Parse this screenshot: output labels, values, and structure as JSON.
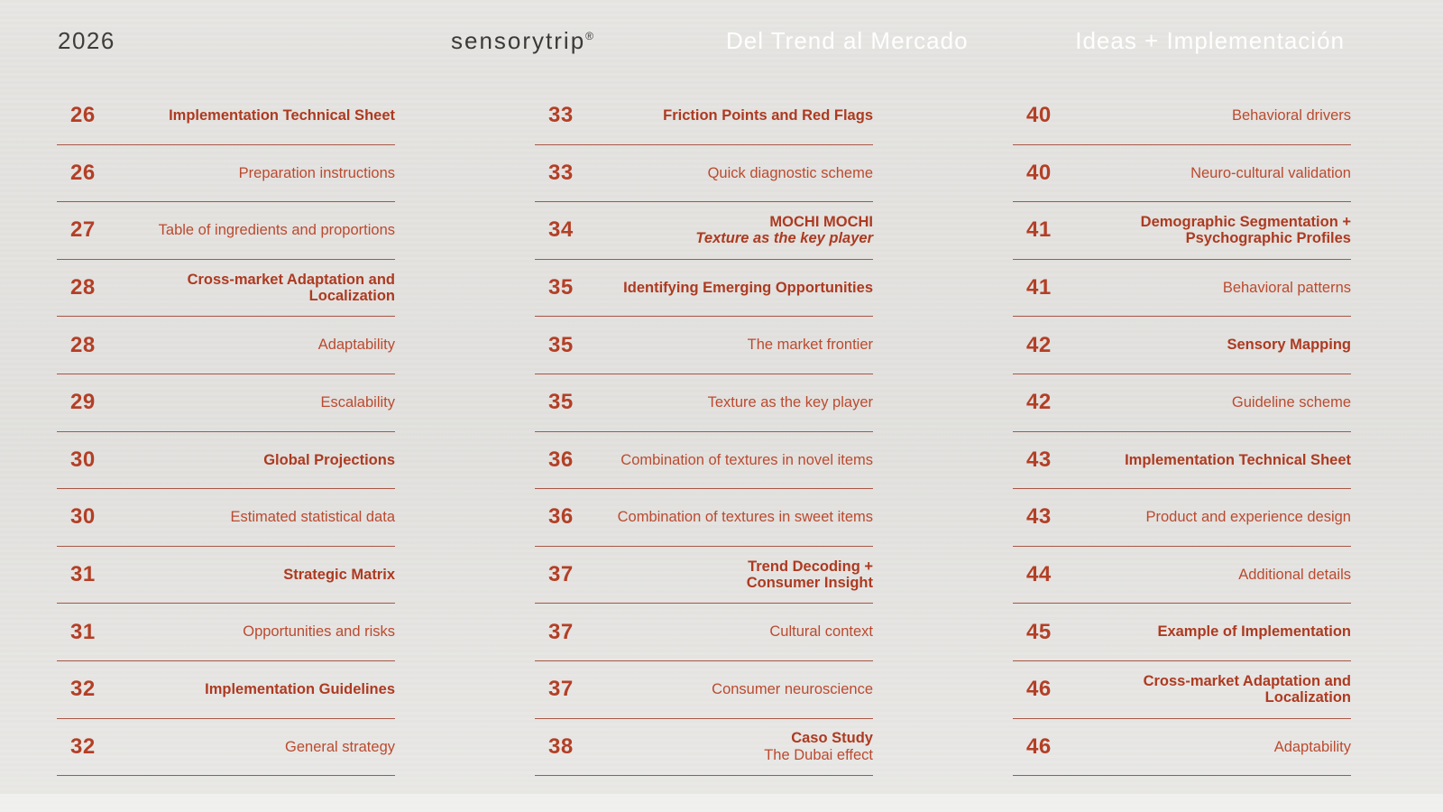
{
  "header": {
    "year": "2026",
    "brand": "sensorytrip",
    "brand_mark": "®",
    "sections": [
      "Del Trend al Mercado",
      "Ideas + Implementación"
    ]
  },
  "colors": {
    "background": "#e4e3e0",
    "accent_number": "#b33f26",
    "accent_title_bold": "#ad3a21",
    "accent_title_regular": "#bb4a2f",
    "rule": "#9e3e2a",
    "header_dark_text": "#3d3d3b",
    "header_light_text": "#ffffff"
  },
  "toc": {
    "columns": [
      {
        "entries": [
          {
            "page": "26",
            "lines": [
              {
                "text": "Implementation Technical Sheet",
                "bold": true,
                "italic": false
              }
            ]
          },
          {
            "page": "26",
            "lines": [
              {
                "text": "Preparation instructions",
                "bold": false,
                "italic": false
              }
            ]
          },
          {
            "page": "27",
            "lines": [
              {
                "text": "Table of ingredients and proportions",
                "bold": false,
                "italic": false
              }
            ]
          },
          {
            "page": "28",
            "lines": [
              {
                "text": "Cross-market Adaptation and Localization",
                "bold": true,
                "italic": false
              }
            ]
          },
          {
            "page": "28",
            "lines": [
              {
                "text": "Adaptability",
                "bold": false,
                "italic": false
              }
            ]
          },
          {
            "page": "29",
            "lines": [
              {
                "text": "Escalability",
                "bold": false,
                "italic": false
              }
            ]
          },
          {
            "page": "30",
            "lines": [
              {
                "text": "Global Projections",
                "bold": true,
                "italic": false
              }
            ]
          },
          {
            "page": "30",
            "lines": [
              {
                "text": "Estimated statistical data",
                "bold": false,
                "italic": false
              }
            ]
          },
          {
            "page": "31",
            "lines": [
              {
                "text": "Strategic Matrix",
                "bold": true,
                "italic": false
              }
            ]
          },
          {
            "page": "31",
            "lines": [
              {
                "text": "Opportunities and risks",
                "bold": false,
                "italic": false
              }
            ]
          },
          {
            "page": "32",
            "lines": [
              {
                "text": "Implementation Guidelines",
                "bold": true,
                "italic": false
              }
            ]
          },
          {
            "page": "32",
            "lines": [
              {
                "text": "General strategy",
                "bold": false,
                "italic": false
              }
            ]
          }
        ]
      },
      {
        "entries": [
          {
            "page": "33",
            "lines": [
              {
                "text": "Friction Points and Red Flags",
                "bold": true,
                "italic": false
              }
            ]
          },
          {
            "page": "33",
            "lines": [
              {
                "text": "Quick diagnostic scheme",
                "bold": false,
                "italic": false
              }
            ]
          },
          {
            "page": "34",
            "lines": [
              {
                "text": "MOCHI MOCHI",
                "bold": true,
                "italic": false
              },
              {
                "text": "Texture as the key player",
                "bold": true,
                "italic": true
              }
            ]
          },
          {
            "page": "35",
            "lines": [
              {
                "text": "Identifying Emerging Opportunities",
                "bold": true,
                "italic": false
              }
            ]
          },
          {
            "page": "35",
            "lines": [
              {
                "text": "The market frontier",
                "bold": false,
                "italic": false
              }
            ]
          },
          {
            "page": "35",
            "lines": [
              {
                "text": "Texture as the key player",
                "bold": false,
                "italic": false
              }
            ]
          },
          {
            "page": "36",
            "lines": [
              {
                "text": "Combination of textures in novel items",
                "bold": false,
                "italic": false
              }
            ]
          },
          {
            "page": "36",
            "lines": [
              {
                "text": "Combination of textures in sweet items",
                "bold": false,
                "italic": false
              }
            ]
          },
          {
            "page": "37",
            "lines": [
              {
                "text": "Trend Decoding +",
                "bold": true,
                "italic": false
              },
              {
                "text": "Consumer Insight",
                "bold": true,
                "italic": false
              }
            ]
          },
          {
            "page": "37",
            "lines": [
              {
                "text": "Cultural context",
                "bold": false,
                "italic": false
              }
            ]
          },
          {
            "page": "37",
            "lines": [
              {
                "text": "Consumer neuroscience",
                "bold": false,
                "italic": false
              }
            ]
          },
          {
            "page": "38",
            "lines": [
              {
                "text": "Caso Study",
                "bold": true,
                "italic": false
              },
              {
                "text": "The Dubai effect",
                "bold": false,
                "italic": false
              }
            ]
          }
        ]
      },
      {
        "entries": [
          {
            "page": "40",
            "lines": [
              {
                "text": "Behavioral drivers",
                "bold": false,
                "italic": false
              }
            ]
          },
          {
            "page": "40",
            "lines": [
              {
                "text": "Neuro-cultural validation",
                "bold": false,
                "italic": false
              }
            ]
          },
          {
            "page": "41",
            "lines": [
              {
                "text": "Demographic Segmentation +",
                "bold": true,
                "italic": false
              },
              {
                "text": "Psychographic Profiles",
                "bold": true,
                "italic": false
              }
            ]
          },
          {
            "page": "41",
            "lines": [
              {
                "text": "Behavioral patterns",
                "bold": false,
                "italic": false
              }
            ]
          },
          {
            "page": "42",
            "lines": [
              {
                "text": "Sensory Mapping",
                "bold": true,
                "italic": false
              }
            ]
          },
          {
            "page": "42",
            "lines": [
              {
                "text": "Guideline scheme",
                "bold": false,
                "italic": false
              }
            ]
          },
          {
            "page": "43",
            "lines": [
              {
                "text": "Implementation Technical Sheet",
                "bold": true,
                "italic": false
              }
            ]
          },
          {
            "page": "43",
            "lines": [
              {
                "text": "Product and experience design",
                "bold": false,
                "italic": false
              }
            ]
          },
          {
            "page": "44",
            "lines": [
              {
                "text": "Additional details",
                "bold": false,
                "italic": false
              }
            ]
          },
          {
            "page": "45",
            "lines": [
              {
                "text": "Example of Implementation",
                "bold": true,
                "italic": false
              }
            ]
          },
          {
            "page": "46",
            "lines": [
              {
                "text": "Cross-market Adaptation and Localization",
                "bold": true,
                "italic": false
              }
            ]
          },
          {
            "page": "46",
            "lines": [
              {
                "text": "Adaptability",
                "bold": false,
                "italic": false
              }
            ]
          }
        ]
      }
    ]
  }
}
